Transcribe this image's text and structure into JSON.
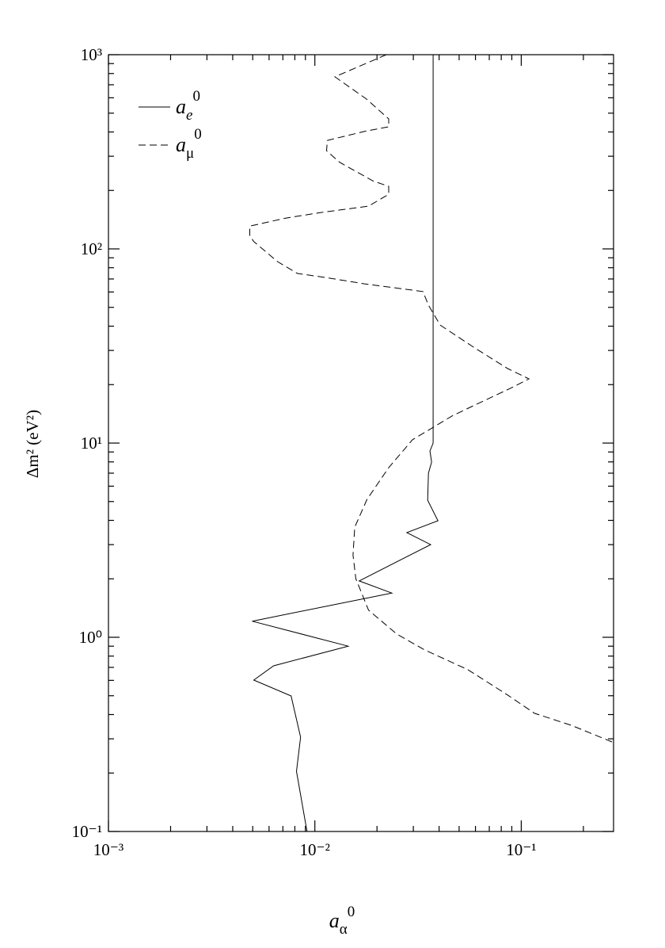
{
  "chart_data": {
    "type": "line",
    "xlabel": {
      "base": "a",
      "sub": "α",
      "sup": "0"
    },
    "ylabel": "Δm² (eV²)",
    "xscale": "log",
    "yscale": "log",
    "xlim": [
      0.001,
      0.28
    ],
    "ylim": [
      0.1,
      1000
    ],
    "xticks": [
      {
        "value": 0.001,
        "label": "10⁻³"
      },
      {
        "value": 0.01,
        "label": "10⁻²"
      },
      {
        "value": 0.1,
        "label": "10⁻¹"
      }
    ],
    "yticks": [
      {
        "value": 0.1,
        "label": "10⁻¹"
      },
      {
        "value": 1,
        "label": "10⁰"
      },
      {
        "value": 10,
        "label": "10¹"
      },
      {
        "value": 100,
        "label": "10²"
      },
      {
        "value": 1000,
        "label": "10³"
      }
    ],
    "legend": "upper left",
    "series": [
      {
        "name": "a",
        "name_sub": "e",
        "name_sup": "0",
        "color": "#000",
        "dash": "solid",
        "x": [
          0.00916,
          0.00815,
          0.00853,
          0.00767,
          0.00506,
          0.00631,
          0.0145,
          0.00497,
          0.0236,
          0.0164,
          0.0364,
          0.0279,
          0.0395,
          0.0352,
          0.0355,
          0.0368,
          0.0361,
          0.0374,
          0.0374
        ],
        "y": [
          0.1,
          0.204,
          0.306,
          0.499,
          0.602,
          0.713,
          0.9,
          1.21,
          1.69,
          1.95,
          3.0,
          3.46,
          3.98,
          5.08,
          7.0,
          7.98,
          9.1,
          10,
          1000
        ]
      },
      {
        "name": "a",
        "name_sub": "μ",
        "name_sup": "0",
        "color": "#000",
        "dash": "dashed",
        "x": [
          0.0222,
          0.0125,
          0.0178,
          0.0228,
          0.0228,
          0.0178,
          0.0115,
          0.0114,
          0.0132,
          0.0191,
          0.0228,
          0.0228,
          0.0182,
          0.0107,
          0.00721,
          0.00484,
          0.00484,
          0.00506,
          0.00659,
          0.00823,
          0.0112,
          0.0175,
          0.0334,
          0.0355,
          0.0405,
          0.0604,
          0.086,
          0.109,
          0.0883,
          0.0604,
          0.0463,
          0.0297,
          0.0228,
          0.0179,
          0.0156,
          0.0153,
          0.0158,
          0.0182,
          0.0249,
          0.034,
          0.0552,
          0.086,
          0.116,
          0.175,
          0.28
        ],
        "y": [
          1000,
          769,
          591,
          467,
          425,
          405,
          362,
          320,
          279,
          224,
          210,
          191,
          166,
          154,
          144,
          131,
          117,
          109,
          86,
          74.7,
          71.3,
          66,
          60.3,
          51.3,
          40.5,
          30.6,
          24.2,
          21.4,
          19.1,
          15.8,
          13.8,
          10.4,
          7.47,
          5.13,
          3.69,
          2.65,
          2.0,
          1.38,
          1.04,
          0.861,
          0.681,
          0.504,
          0.406,
          0.352,
          0.287
        ]
      }
    ]
  }
}
